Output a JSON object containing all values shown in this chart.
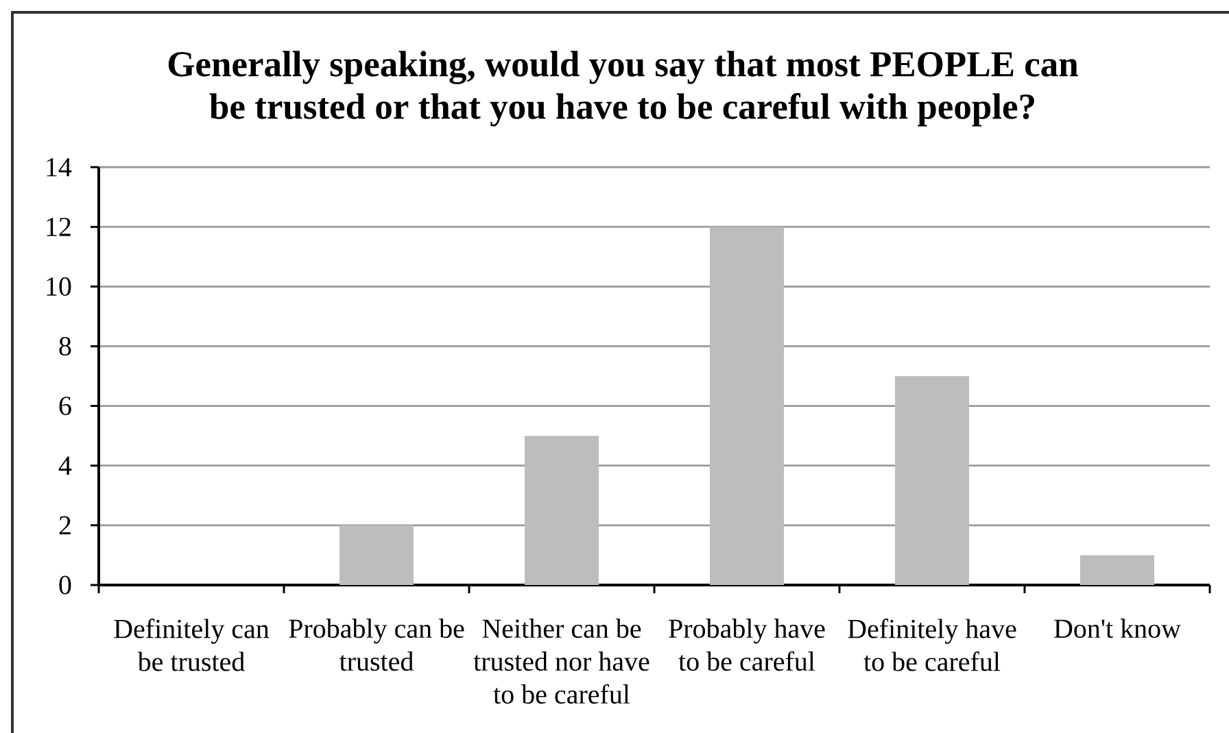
{
  "chart_data": {
    "type": "bar",
    "title": "Generally speaking, would you say that most PEOPLE can be trusted or that you have to be careful with people?",
    "categories": [
      "Definitely can be trusted",
      "Probably can be trusted",
      "Neither can be trusted nor have to be careful",
      "Probably have to be careful",
      "Definitely have to be careful",
      "Don't know"
    ],
    "values": [
      0,
      2,
      5,
      12,
      7,
      1
    ],
    "color": "#bcbdbf",
    "ylim": [
      0,
      14
    ],
    "yticks": [
      0,
      2,
      4,
      6,
      8,
      10,
      12,
      14
    ],
    "grid": "y"
  }
}
